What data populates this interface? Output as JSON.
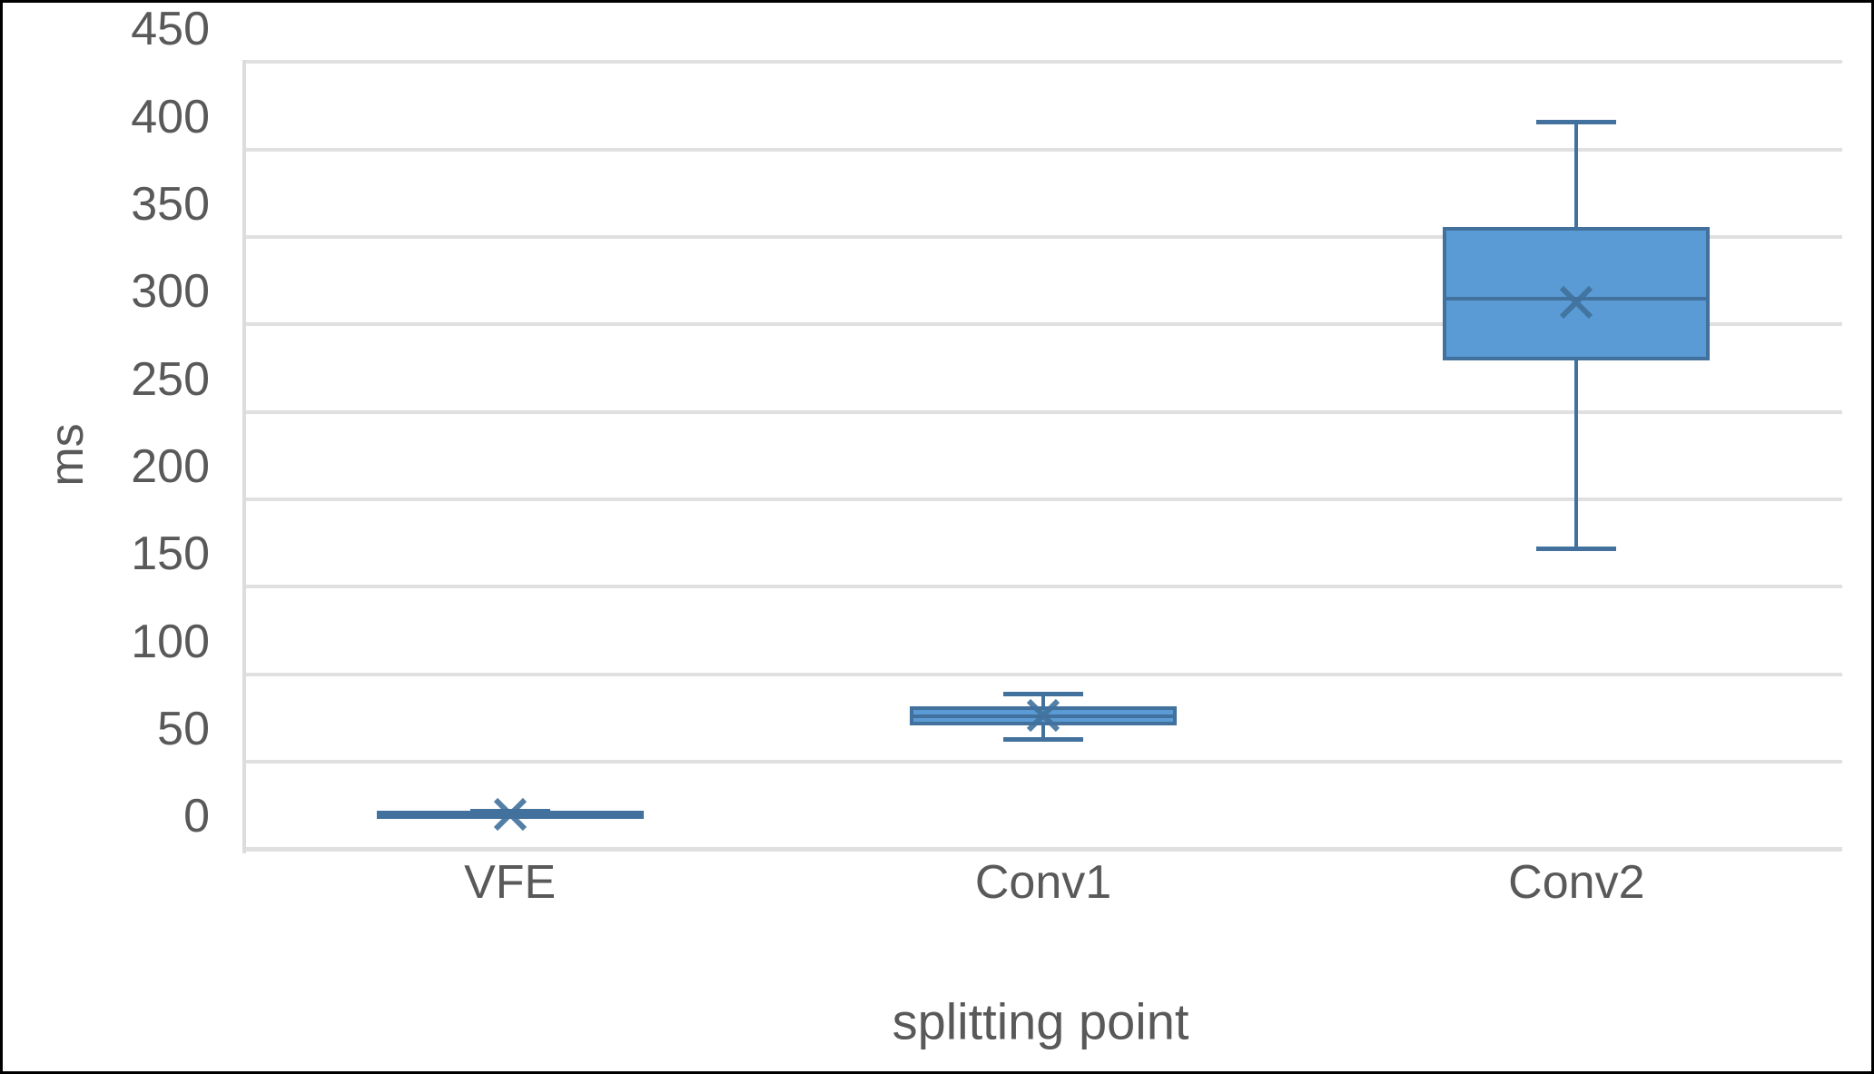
{
  "figure": {
    "background": "#ffffff",
    "frame_color": "#000000"
  },
  "chart_data": {
    "type": "boxplot",
    "title": "",
    "xlabel": "splitting point",
    "ylabel": "ms",
    "categories": [
      "VFE",
      "Conv1",
      "Conv2"
    ],
    "y_axis": {
      "min": 0,
      "max": 450,
      "step": 50,
      "tick_labels": [
        "0",
        "50",
        "100",
        "150",
        "200",
        "250",
        "300",
        "350",
        "400",
        "450"
      ]
    },
    "grid": true,
    "legend": "none",
    "series": [
      {
        "category": "VFE",
        "min": 0,
        "q1": 0,
        "median": 1,
        "q3": 2,
        "max": 3,
        "mean": 1
      },
      {
        "category": "Conv1",
        "min": 44,
        "q1": 53,
        "median": 57,
        "q3": 62,
        "max": 70,
        "mean": 58
      },
      {
        "category": "Conv2",
        "min": 153,
        "q1": 262,
        "median": 296,
        "q3": 336,
        "max": 397,
        "mean": 294
      }
    ],
    "colors": {
      "box_fill": "#5b9bd5",
      "box_line": "#41719c",
      "mean_marker": "#41719c",
      "gridline": "#e0e0e0",
      "axis_line": "#dcdcdc",
      "text": "#595959"
    }
  }
}
